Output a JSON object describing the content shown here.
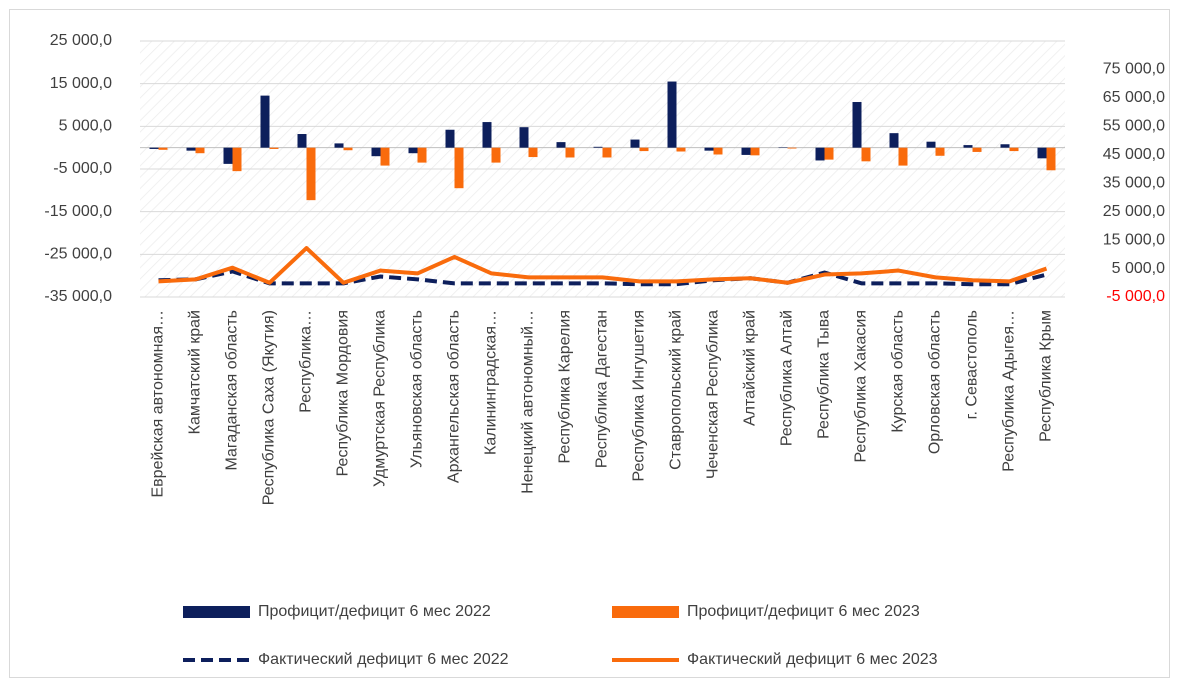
{
  "chart_data": {
    "type": "bar-line",
    "categories": [
      "Еврейская автономная…",
      "Камчатский край",
      "Магаданская область",
      "Республика Саха (Якутия)",
      "Республика…",
      "Республика Мордовия",
      "Удмуртская Республика",
      "Ульяновская область",
      "Архангельская область",
      "Калининградская…",
      "Ненецкий автономный…",
      "Республика Карелия",
      "Республика Дагестан",
      "Республика Ингушетия",
      "Ставропольский край",
      "Чеченская Республика",
      "Алтайский край",
      "Республика Алтай",
      "Республика Тыва",
      "Республика Хакасия",
      "Курская область",
      "Орловская область",
      "г. Севастополь",
      "Республика Адыгея…",
      "Республика Крым"
    ],
    "series": [
      {
        "name": "Профицит/дефицит 6 мес 2022",
        "type": "bar",
        "color": "#0d1f5c",
        "values": [
          -300,
          -700,
          -3800,
          12200,
          3200,
          1000,
          -2000,
          -1300,
          4200,
          6000,
          4800,
          1300,
          200,
          1900,
          15500,
          -700,
          -1700,
          100,
          -3000,
          10700,
          3400,
          1400,
          600,
          800,
          -2500
        ]
      },
      {
        "name": "Профицит/дефицит 6 мес 2023",
        "type": "bar",
        "color": "#f96b0c",
        "values": [
          -500,
          -1300,
          -5500,
          -300,
          -12300,
          -600,
          -4200,
          -3500,
          -9500,
          -3500,
          -2200,
          -2300,
          -2300,
          -800,
          -900,
          -1600,
          -1800,
          -200,
          -2800,
          -3200,
          -4200,
          -1900,
          -1000,
          -800,
          -5300
        ]
      },
      {
        "name": "Фактический дефицит 6 мес 2022",
        "type": "line",
        "axis": "y2",
        "dashed": true,
        "color": "#0d1f5c",
        "values": [
          900,
          1200,
          4000,
          -200,
          -200,
          -200,
          2200,
          1200,
          -200,
          -200,
          -200,
          -200,
          -200,
          -500,
          -500,
          900,
          1600,
          0,
          3600,
          -200,
          -200,
          -200,
          -500,
          -500,
          2900
        ]
      },
      {
        "name": "Фактический дефицит 6 мес 2023",
        "type": "line",
        "axis": "y2",
        "dashed": false,
        "color": "#f96b0c",
        "values": [
          500,
          1200,
          5300,
          0,
          12200,
          0,
          4300,
          3300,
          9100,
          3300,
          1900,
          1900,
          1900,
          500,
          500,
          1200,
          1600,
          0,
          2900,
          3300,
          4300,
          1900,
          900,
          500,
          5000
        ]
      }
    ],
    "ylim": [
      -35000,
      25000
    ],
    "yticks": [
      {
        "value": 25000,
        "label": "25 000,0"
      },
      {
        "value": 15000,
        "label": "15 000,0"
      },
      {
        "value": 5000,
        "label": "5 000,0"
      },
      {
        "value": -5000,
        "label": "-5 000,0"
      },
      {
        "value": -15000,
        "label": "-15 000,0"
      },
      {
        "value": -25000,
        "label": "-25 000,0"
      },
      {
        "value": -35000,
        "label": "-35 000,0"
      }
    ],
    "y2lim": [
      -5000,
      85000
    ],
    "y2ticks": [
      {
        "value": 75000,
        "label": "75 000,0"
      },
      {
        "value": 65000,
        "label": "65 000,0"
      },
      {
        "value": 55000,
        "label": "55 000,0"
      },
      {
        "value": 45000,
        "label": "45 000,0"
      },
      {
        "value": 35000,
        "label": "35 000,0"
      },
      {
        "value": 25000,
        "label": "25 000,0"
      },
      {
        "value": 15000,
        "label": "15 000,0"
      },
      {
        "value": 5000,
        "label": "5 000,0"
      },
      {
        "value": -5000,
        "label": "-5 000,0"
      }
    ],
    "y2_negative_color": "#ff0000",
    "grid": true,
    "legend": "bottom"
  }
}
